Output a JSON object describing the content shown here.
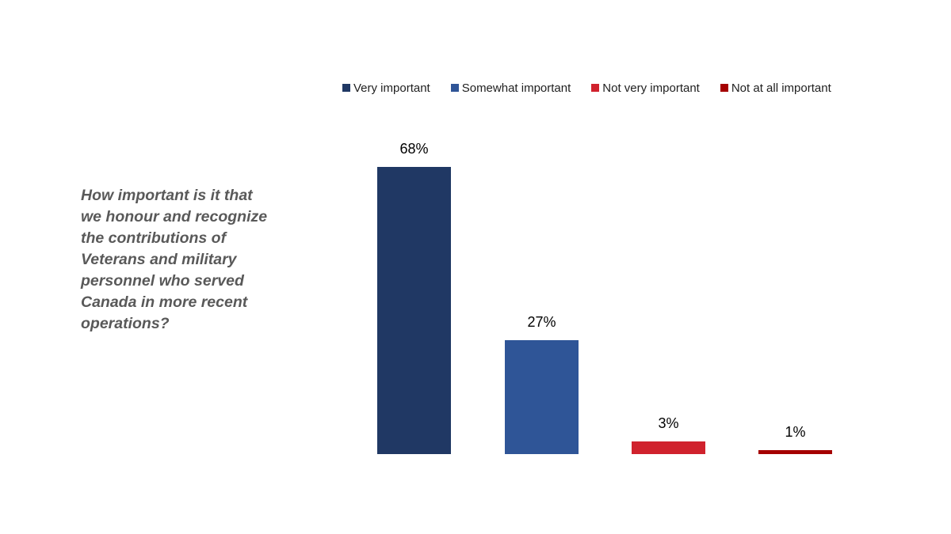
{
  "legend": [
    {
      "label": "Very important",
      "color": "#203864"
    },
    {
      "label": "Somewhat important",
      "color": "#2F5597"
    },
    {
      "label": "Not very important",
      "color": "#D0222D"
    },
    {
      "label": "Not at all important",
      "color": "#A50000"
    }
  ],
  "question": "How important is it that we honour and recognize the contributions of Veterans and military personnel who served Canada in more recent operations?",
  "bars": [
    {
      "label": "68%",
      "value": 68,
      "color": "#203864"
    },
    {
      "label": "27%",
      "value": 27,
      "color": "#2F5597"
    },
    {
      "label": "3%",
      "value": 3,
      "color": "#D0222D"
    },
    {
      "label": "1%",
      "value": 1,
      "color": "#A50000"
    }
  ],
  "chart_data": {
    "type": "bar",
    "title": "How important is it that we honour and recognize the contributions of Veterans and military personnel who served Canada in more recent operations?",
    "categories": [
      "Very important",
      "Somewhat important",
      "Not very important",
      "Not at all important"
    ],
    "values": [
      68,
      27,
      3,
      1
    ],
    "value_labels": [
      "68%",
      "27%",
      "3%",
      "1%"
    ],
    "xlabel": "",
    "ylabel": "",
    "ylim": [
      0,
      70
    ],
    "grid": false,
    "legend_position": "top",
    "colors": [
      "#203864",
      "#2F5597",
      "#D0222D",
      "#A50000"
    ]
  }
}
